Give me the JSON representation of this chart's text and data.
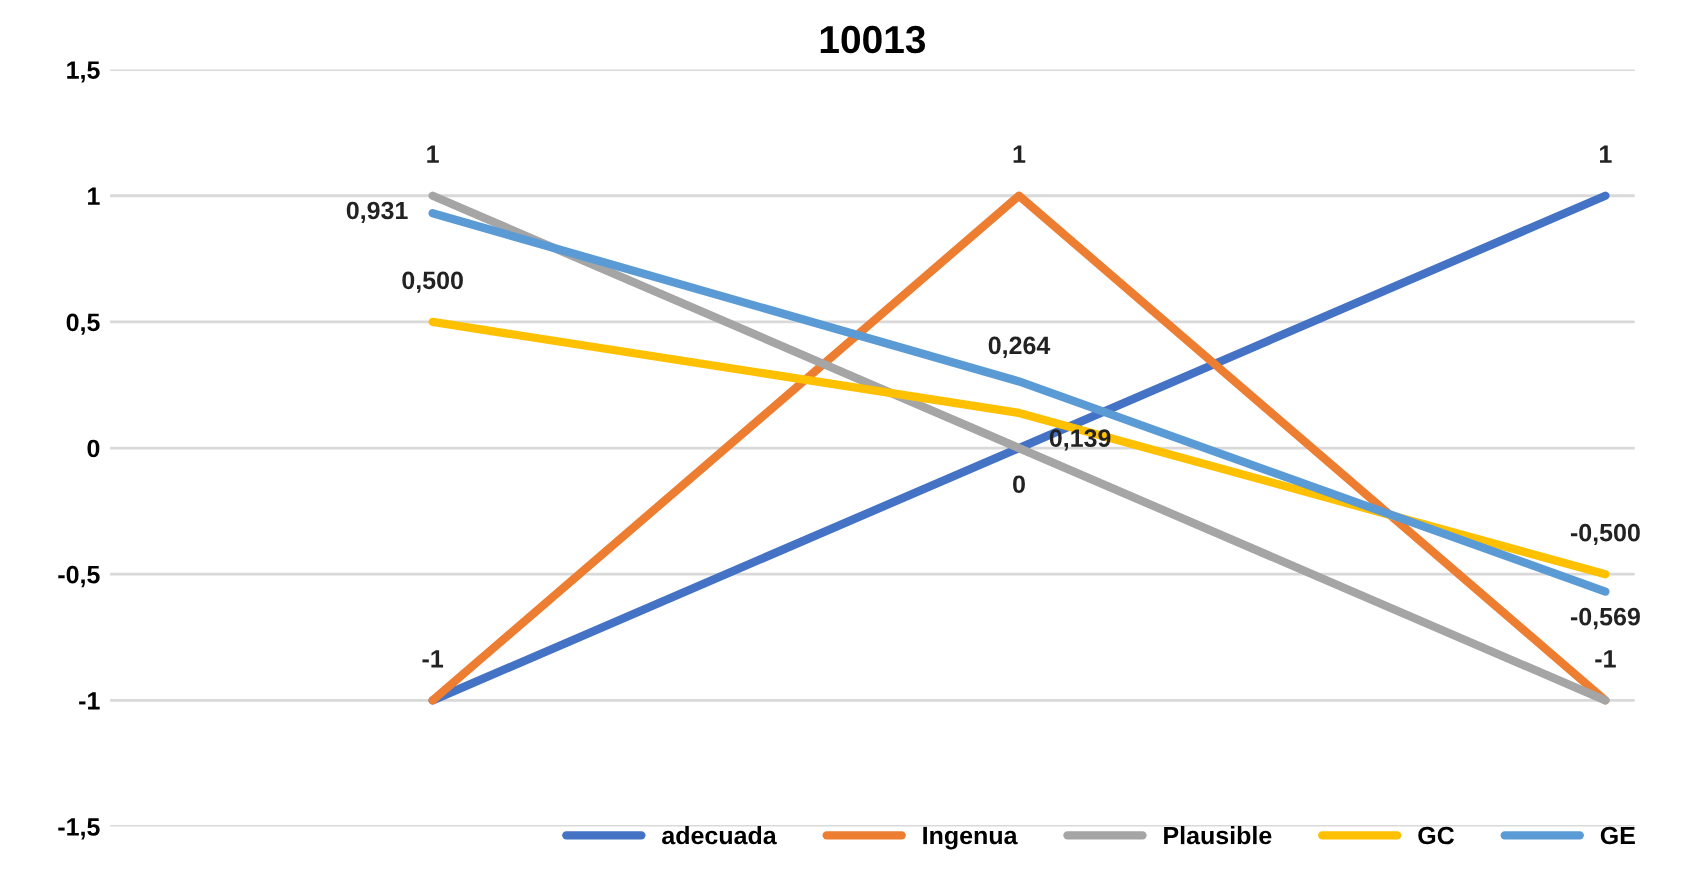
{
  "chart_data": {
    "type": "line",
    "title": "10013",
    "categories": [
      null,
      null,
      null
    ],
    "series": [
      {
        "name": "adecuada",
        "color": "#4472c4",
        "values": [
          -1,
          0,
          1
        ],
        "value_labels": [
          "-1",
          "0",
          "1"
        ]
      },
      {
        "name": "Ingenua",
        "color": "#ed7d31",
        "values": [
          -1,
          1,
          -1
        ],
        "value_labels": [
          null,
          "1",
          "-1"
        ]
      },
      {
        "name": "Plausible",
        "color": "#a5a5a5",
        "values": [
          1,
          0,
          -1
        ],
        "value_labels": [
          "1",
          null,
          null
        ]
      },
      {
        "name": "GC",
        "color": "#ffc000",
        "values": [
          0.5,
          0.139,
          -0.5
        ],
        "value_labels": [
          "0,500",
          "0,139",
          "-0,500"
        ]
      },
      {
        "name": "GE",
        "color": "#5b9bd5",
        "values": [
          0.931,
          0.264,
          -0.569
        ],
        "value_labels": [
          "0,931",
          "0,264",
          "-0,569"
        ]
      }
    ],
    "ylim": [
      -1.5,
      1.5
    ],
    "yticks": [
      {
        "value": -1.5,
        "label": "-1,5"
      },
      {
        "value": -1,
        "label": "-1"
      },
      {
        "value": -0.5,
        "label": "-0,5"
      },
      0,
      {
        "value": 0.5,
        "label": "0,5"
      },
      1,
      {
        "value": 1.5,
        "label": "1,5"
      }
    ],
    "grid": "y",
    "legend": "bottom",
    "marker": "none",
    "line_style": "solid"
  }
}
